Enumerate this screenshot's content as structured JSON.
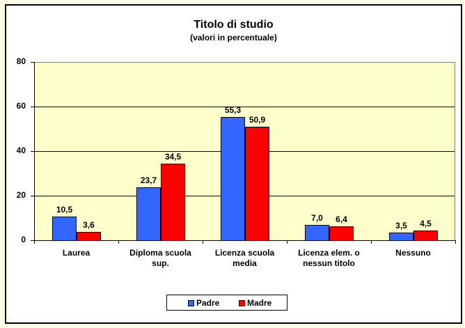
{
  "chart_data": {
    "type": "bar",
    "title": "Titolo di studio",
    "subtitle": "(valori in percentuale)",
    "xlabel": "",
    "ylabel": "",
    "ylim": [
      0,
      80
    ],
    "yticks": [
      "0",
      "20",
      "40",
      "60",
      "80"
    ],
    "grid": true,
    "legend_position": "bottom",
    "categories": [
      "Laurea",
      "Diploma scuola sup.",
      "Licenza scuola media",
      "Licenza elem. o nessun titolo",
      "Nessuno"
    ],
    "category_lines": [
      [
        "Laurea"
      ],
      [
        "Diploma scuola",
        "sup."
      ],
      [
        "Licenza scuola",
        "media"
      ],
      [
        "Licenza elem. o",
        "nessun titolo"
      ],
      [
        "Nessuno"
      ]
    ],
    "series": [
      {
        "name": "Padre",
        "color": "#3366FF",
        "values": [
          10.5,
          23.7,
          55.3,
          7.0,
          3.5
        ],
        "labels": [
          "10,5",
          "23,7",
          "55,3",
          "7,0",
          "3,5"
        ]
      },
      {
        "name": "Madre",
        "color": "#FF0000",
        "values": [
          3.6,
          34.5,
          50.9,
          6.4,
          4.5
        ],
        "labels": [
          "3,6",
          "34,5",
          "50,9",
          "6,4",
          "4,5"
        ]
      }
    ]
  },
  "colors": {
    "plot_background": "#FFFFCC",
    "page_background": "#FFFFE6",
    "padre": "#3366FF",
    "madre": "#FF0000"
  }
}
